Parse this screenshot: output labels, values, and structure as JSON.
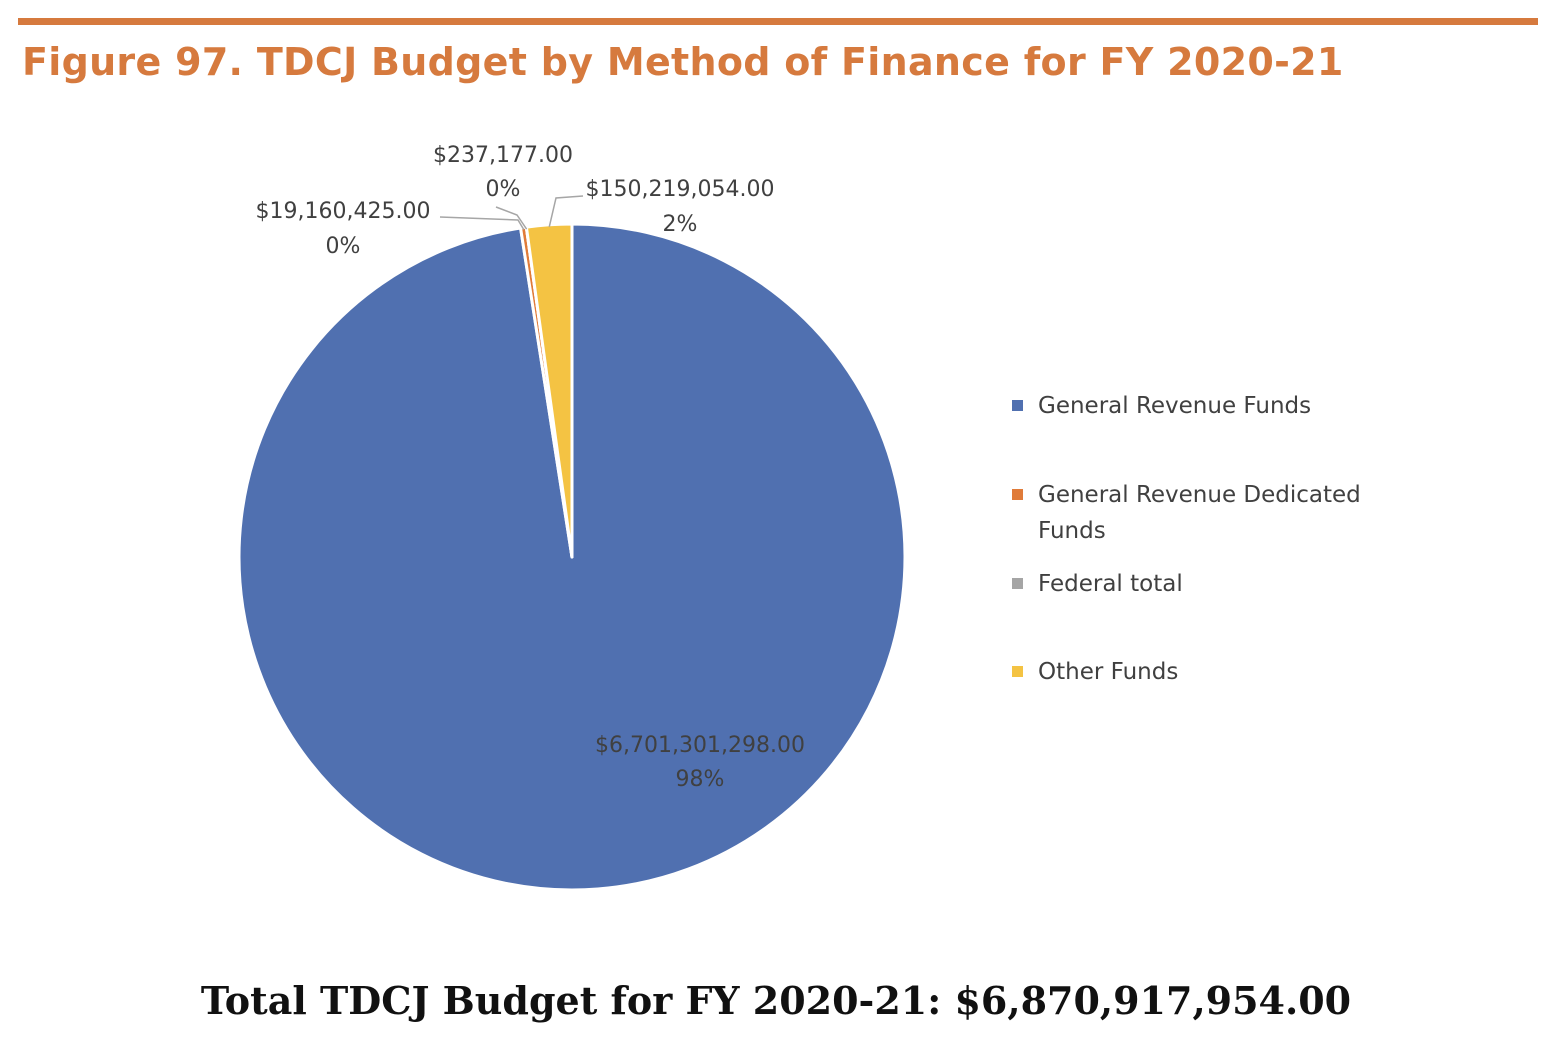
{
  "header": {
    "title": "Figure 97. TDCJ Budget by Method of Finance for FY 2020-21"
  },
  "chart_data": {
    "type": "pie",
    "title": "Figure 97. TDCJ Budget by Method of Finance for FY 2020-21",
    "legend_position": "right",
    "slices": [
      {
        "name": "General Revenue Funds",
        "value": 6701301298.0,
        "value_label": "$6,701,301,298.00",
        "percent_label": "98%",
        "color": "#5070b0"
      },
      {
        "name": "General Revenue Dedicated Funds",
        "value": 19160425.0,
        "value_label": "$19,160,425.00",
        "percent_label": "0%",
        "color": "#e07b39"
      },
      {
        "name": "Federal total",
        "value": 237177.0,
        "value_label": "$237,177.00",
        "percent_label": "0%",
        "color": "#a5a5a5"
      },
      {
        "name": "Other Funds",
        "value": 150219054.0,
        "value_label": "$150,219,054.00",
        "percent_label": "2%",
        "color": "#f4c343"
      }
    ]
  },
  "legend": {
    "items": [
      {
        "label": "General Revenue Funds",
        "color": "#5070b0"
      },
      {
        "label": "General Revenue Dedicated Funds",
        "color": "#e07b39"
      },
      {
        "label": "Federal total",
        "color": "#a5a5a5"
      },
      {
        "label": "Other Funds",
        "color": "#f4c343"
      }
    ]
  },
  "footer": {
    "total_text": "Total TDCJ Budget for FY 2020-21: $6,870,917,954.00"
  }
}
